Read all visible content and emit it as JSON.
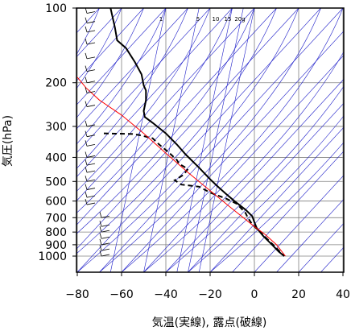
{
  "chart_data": {
    "type": "line",
    "title": "",
    "xlabel": "気温(実線), 露点(破線)",
    "ylabel": "気圧(hPa)",
    "x_ticks": [
      -80,
      -60,
      -40,
      -20,
      0,
      20,
      40
    ],
    "x_tick_labels": [
      "−80",
      "−60",
      "−40",
      "−20",
      "0",
      "20",
      "40"
    ],
    "y_ticks": [
      100,
      200,
      300,
      400,
      500,
      600,
      700,
      800,
      900,
      1000
    ],
    "y_tick_labels": [
      "100",
      "200",
      "300",
      "400",
      "500",
      "600",
      "700",
      "800",
      "900",
      "1000"
    ],
    "xlim": [
      -80,
      40
    ],
    "ylim": [
      1050,
      100
    ],
    "y_scale": "log",
    "mixing_ratio_labels": [
      "1",
      "5",
      "10",
      "15",
      "20g"
    ],
    "series": [
      {
        "style": "solid",
        "color": "#000000",
        "points": [
          [
            -65,
            100
          ],
          [
            -63,
            120
          ],
          [
            -62,
            135
          ],
          [
            -58,
            145
          ],
          [
            -54,
            165
          ],
          [
            -51,
            185
          ],
          [
            -50,
            205
          ],
          [
            -49,
            215
          ],
          [
            -49,
            235
          ],
          [
            -50,
            260
          ],
          [
            -49.5,
            275
          ],
          [
            -46,
            290
          ],
          [
            -40,
            320
          ],
          [
            -35,
            355
          ],
          [
            -31,
            390
          ],
          [
            -25,
            440
          ],
          [
            -20,
            490
          ],
          [
            -17,
            520
          ],
          [
            -13,
            560
          ],
          [
            -9,
            600
          ],
          [
            -4,
            650
          ],
          [
            -1,
            690
          ],
          [
            0,
            730
          ],
          [
            1,
            770
          ],
          [
            4,
            830
          ],
          [
            8,
            900
          ],
          [
            11,
            960
          ],
          [
            13.5,
            1000
          ]
        ]
      },
      {
        "style": "dashed",
        "color": "#000000",
        "points": [
          [
            -68,
            320
          ],
          [
            -55,
            322
          ],
          [
            -52,
            325
          ],
          [
            -46,
            335
          ],
          [
            -43,
            355
          ],
          [
            -39,
            380
          ],
          [
            -35,
            410
          ],
          [
            -34,
            425
          ],
          [
            -30,
            445
          ],
          [
            -32,
            470
          ],
          [
            -36,
            495
          ],
          [
            -33,
            515
          ],
          [
            -25,
            525
          ],
          [
            -20,
            555
          ],
          [
            -13,
            585
          ],
          [
            -8,
            615
          ],
          [
            -4,
            670
          ],
          [
            -3,
            700
          ],
          [
            -1,
            745
          ],
          [
            2,
            790
          ],
          [
            5,
            840
          ],
          [
            9,
            910
          ],
          [
            12,
            970
          ],
          [
            13.5,
            1000
          ]
        ]
      },
      {
        "style": "solid",
        "color": "#ff0000",
        "points": [
          [
            -80,
            190
          ],
          [
            -76,
            210
          ],
          [
            -70,
            235
          ],
          [
            -60,
            270
          ],
          [
            -50,
            320
          ],
          [
            -40,
            385
          ],
          [
            -30,
            460
          ],
          [
            -20,
            545
          ],
          [
            -10,
            645
          ],
          [
            0,
            760
          ],
          [
            5,
            820
          ],
          [
            10,
            900
          ],
          [
            14,
            1000
          ]
        ]
      }
    ],
    "wind_barbs_at": [
      105,
      115,
      125,
      140,
      160,
      180,
      200,
      220,
      250,
      300,
      330,
      360,
      400,
      430,
      460,
      500,
      540,
      580,
      620,
      700,
      760,
      800,
      850,
      900,
      950,
      1000
    ]
  }
}
